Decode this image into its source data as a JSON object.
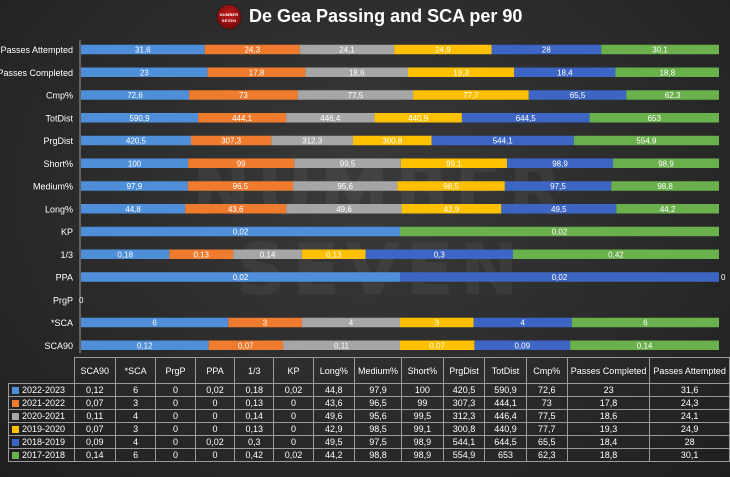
{
  "title": "De Gea Passing and SCA per 90",
  "logo_text": [
    "NUMBER",
    "SEVEN"
  ],
  "watermark": [
    "NUMBER",
    "SEVEN"
  ],
  "colors": {
    "2022-2023": "#4f8fd9",
    "2021-2022": "#ef7b2e",
    "2020-2021": "#a6a6a6",
    "2019-2020": "#ffc000",
    "2018-2019": "#3d66c4",
    "2017-2018": "#6ab04c"
  },
  "chart_data": {
    "type": "bar",
    "stacked": "percent",
    "orientation": "horizontal",
    "title": "De Gea Passing and SCA per 90",
    "categories": [
      "Passes Attempted",
      "Passes Completed",
      "Cmp%",
      "TotDist",
      "PrgDist",
      "Short%",
      "Medium%",
      "Long%",
      "KP",
      "1/3",
      "PPA",
      "PrgP",
      "*SCA",
      "SCA90"
    ],
    "series": [
      {
        "name": "2022-2023",
        "values": [
          "31,6",
          "23",
          "72,6",
          "590,9",
          "420,5",
          "100",
          "97,9",
          "44,8",
          "0,02",
          "0,18",
          "0,02",
          "0",
          "6",
          "0,12"
        ]
      },
      {
        "name": "2021-2022",
        "values": [
          "24,3",
          "17,8",
          "73",
          "444,1",
          "307,3",
          "99",
          "96,5",
          "43,6",
          "0",
          "0,13",
          "0",
          "0",
          "3",
          "0,07"
        ]
      },
      {
        "name": "2020-2021",
        "values": [
          "24,1",
          "18,6",
          "77,5",
          "446,4",
          "312,3",
          "99,5",
          "95,6",
          "49,6",
          "0",
          "0,14",
          "0",
          "0",
          "4",
          "0,11"
        ]
      },
      {
        "name": "2019-2020",
        "values": [
          "24,9",
          "19,3",
          "77,7",
          "440,9",
          "300,8",
          "99,1",
          "98,5",
          "42,9",
          "0",
          "0,13",
          "0",
          "0",
          "3",
          "0,07"
        ]
      },
      {
        "name": "2018-2019",
        "values": [
          "28",
          "18,4",
          "65,5",
          "644,5",
          "544,1",
          "98,9",
          "97,5",
          "49,5",
          "0",
          "0,3",
          "0,02",
          "0",
          "4",
          "0,09"
        ]
      },
      {
        "name": "2017-2018",
        "values": [
          "30,1",
          "18,8",
          "62,3",
          "653",
          "554,9",
          "98,9",
          "98,8",
          "44,2",
          "0,02",
          "0,42",
          "0",
          "0",
          "6",
          "0,14"
        ]
      }
    ],
    "extra_labels": [
      {
        "category": "PrgP",
        "label": "0"
      },
      {
        "category": "PPA",
        "label": "0"
      }
    ]
  },
  "table": {
    "headers": [
      "SCA90",
      "*SCA",
      "PrgP",
      "PPA",
      "1/3",
      "KP",
      "Long%",
      "Medium%",
      "Short%",
      "PrgDist",
      "TotDist",
      "Cmp%",
      "Passes Completed",
      "Passes Attempted"
    ],
    "rows": [
      {
        "season": "2022-2023",
        "cells": [
          "0,12",
          "6",
          "0",
          "0,02",
          "0,18",
          "0,02",
          "44,8",
          "97,9",
          "100",
          "420,5",
          "590,9",
          "72,6",
          "23",
          "31,6"
        ]
      },
      {
        "season": "2021-2022",
        "cells": [
          "0,07",
          "3",
          "0",
          "0",
          "0,13",
          "0",
          "43,6",
          "96,5",
          "99",
          "307,3",
          "444,1",
          "73",
          "17,8",
          "24,3"
        ]
      },
      {
        "season": "2020-2021",
        "cells": [
          "0,11",
          "4",
          "0",
          "0",
          "0,14",
          "0",
          "49,6",
          "95,6",
          "99,5",
          "312,3",
          "446,4",
          "77,5",
          "18,6",
          "24,1"
        ]
      },
      {
        "season": "2019-2020",
        "cells": [
          "0,07",
          "3",
          "0",
          "0",
          "0,13",
          "0",
          "42,9",
          "98,5",
          "99,1",
          "300,8",
          "440,9",
          "77,7",
          "19,3",
          "24,9"
        ]
      },
      {
        "season": "2018-2019",
        "cells": [
          "0,09",
          "4",
          "0",
          "0,02",
          "0,3",
          "0",
          "49,5",
          "97,5",
          "98,9",
          "544,1",
          "644,5",
          "65,5",
          "18,4",
          "28"
        ]
      },
      {
        "season": "2017-2018",
        "cells": [
          "0,14",
          "6",
          "0",
          "0",
          "0,42",
          "0,02",
          "44,2",
          "98,8",
          "98,9",
          "554,9",
          "653",
          "62,3",
          "18,8",
          "30,1"
        ]
      }
    ]
  }
}
